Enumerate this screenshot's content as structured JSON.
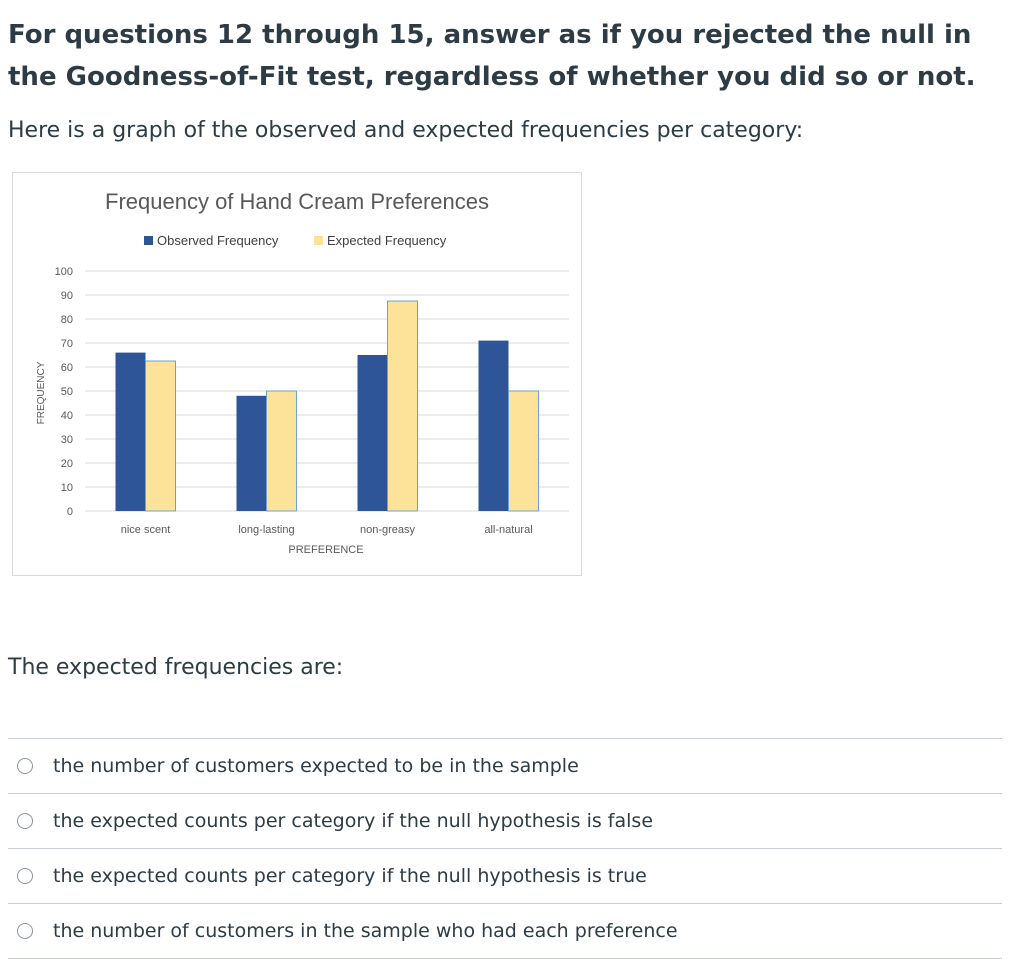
{
  "question": {
    "heading": "For questions 12 through 15, answer as if you rejected the null in the Goodness-of-Fit test, regardless of whether you did so or not.",
    "intro": "Here is a graph of the observed and expected frequencies per category:",
    "prompt": "The expected frequencies are:",
    "options": [
      {
        "label": "the number of customers expected to be in the sample"
      },
      {
        "label": "the expected counts per category if the null hypothesis is false"
      },
      {
        "label": "the expected counts per category if the null hypothesis is true"
      },
      {
        "label": "the number of customers in the sample who had each preference"
      }
    ]
  },
  "chart_data": {
    "type": "bar",
    "title": "Frequency of Hand Cream Preferences",
    "xlabel": "PREFERENCE",
    "ylabel": "FREQUENCY",
    "categories": [
      "nice scent",
      "long-lasting",
      "non-greasy",
      "all-natural"
    ],
    "series": [
      {
        "name": "Observed Frequency",
        "values": [
          66,
          48,
          65,
          71
        ],
        "color": "#2e5597"
      },
      {
        "name": "Expected Frequency",
        "values": [
          62.5,
          50,
          87.5,
          50
        ],
        "color": "#fde39a"
      }
    ],
    "yticks": [
      "0",
      "10",
      "20",
      "30",
      "40",
      "50",
      "60",
      "70",
      "80",
      "90",
      "100"
    ],
    "ylim": [
      0,
      100
    ],
    "legend": "top",
    "grid": true
  }
}
